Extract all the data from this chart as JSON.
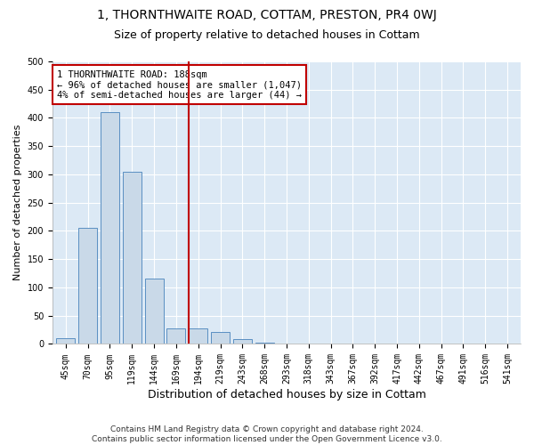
{
  "title_line1": "1, THORNTHWAITE ROAD, COTTAM, PRESTON, PR4 0WJ",
  "title_line2": "Size of property relative to detached houses in Cottam",
  "xlabel": "Distribution of detached houses by size in Cottam",
  "ylabel": "Number of detached properties",
  "footer": "Contains HM Land Registry data © Crown copyright and database right 2024.\nContains public sector information licensed under the Open Government Licence v3.0.",
  "bar_labels": [
    "45sqm",
    "70sqm",
    "95sqm",
    "119sqm",
    "144sqm",
    "169sqm",
    "194sqm",
    "219sqm",
    "243sqm",
    "268sqm",
    "293sqm",
    "318sqm",
    "343sqm",
    "367sqm",
    "392sqm",
    "417sqm",
    "442sqm",
    "467sqm",
    "491sqm",
    "516sqm",
    "541sqm"
  ],
  "bar_values": [
    10,
    205,
    410,
    305,
    115,
    28,
    28,
    22,
    8,
    3,
    1,
    1,
    0,
    0,
    0,
    0,
    0,
    0,
    0,
    0,
    1
  ],
  "bar_color": "#c9d9e8",
  "bar_edge_color": "#5a8fc2",
  "highlight_index": 6,
  "highlight_color": "#c00000",
  "annotation_line1": "1 THORNTHWAITE ROAD: 188sqm",
  "annotation_line2": "← 96% of detached houses are smaller (1,047)",
  "annotation_line3": "4% of semi-detached houses are larger (44) →",
  "annotation_box_facecolor": "#ffffff",
  "annotation_box_edgecolor": "#c00000",
  "ylim": [
    0,
    500
  ],
  "yticks": [
    0,
    50,
    100,
    150,
    200,
    250,
    300,
    350,
    400,
    450,
    500
  ],
  "plot_bg_color": "#dce9f5",
  "fig_bg_color": "#ffffff",
  "grid_color": "#ffffff",
  "title1_fontsize": 10,
  "title2_fontsize": 9,
  "ylabel_fontsize": 8,
  "xlabel_fontsize": 9,
  "tick_fontsize": 7,
  "footer_fontsize": 6.5,
  "annot_fontsize": 7.5
}
